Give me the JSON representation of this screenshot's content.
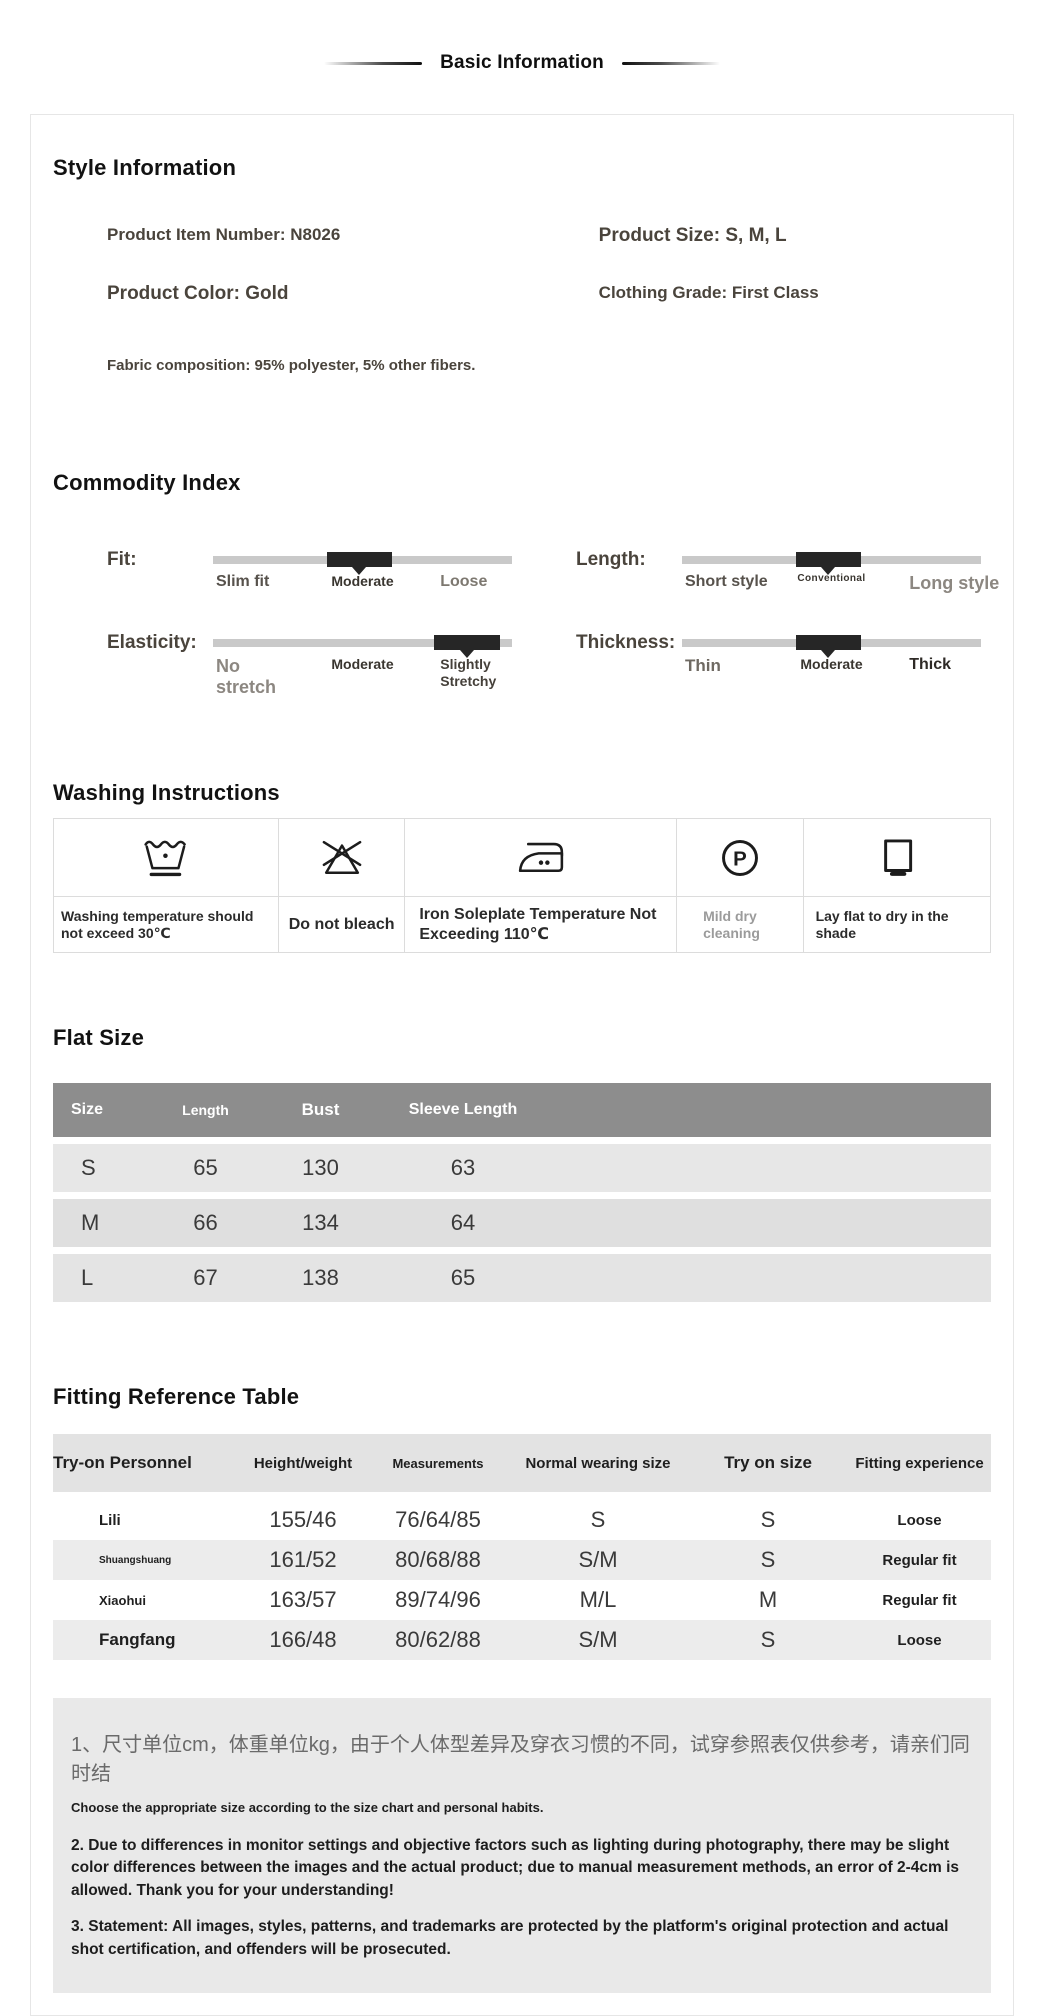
{
  "header": {
    "title": "Basic Information"
  },
  "style_information": {
    "heading": "Style Information",
    "fields": {
      "item_number": "Product Item Number: N8026",
      "size": "Product Size: S, M, L",
      "color": "Product Color: Gold",
      "grade": "Clothing Grade: First Class",
      "fabric": "Fabric composition: 95% polyester, 5% other fibers."
    }
  },
  "commodity_index": {
    "heading": "Commodity Index",
    "sliders": [
      {
        "name": "Fit:",
        "labels": [
          "Slim fit",
          "Moderate",
          "Loose"
        ],
        "active_left_pct": 38,
        "active_width_pct": 22
      },
      {
        "name": "Length:",
        "labels": [
          "Short style",
          "Conventional",
          "Long style"
        ],
        "active_left_pct": 38,
        "active_width_pct": 22
      },
      {
        "name": "Elasticity:",
        "labels": [
          "No stretch",
          "Moderate",
          "Slightly Stretchy"
        ],
        "active_left_pct": 74,
        "active_width_pct": 22
      },
      {
        "name": "Thickness:",
        "labels": [
          "Thin",
          "Moderate",
          "Thick"
        ],
        "active_left_pct": 38,
        "active_width_pct": 22
      }
    ]
  },
  "washing": {
    "heading": "Washing Instructions",
    "items": [
      {
        "icon": "wash-temperature-icon",
        "label": "Washing temperature should not exceed 30℃"
      },
      {
        "icon": "do-not-bleach-icon",
        "label": "Do not bleach"
      },
      {
        "icon": "iron-temperature-icon",
        "label": "Iron Soleplate Temperature Not Exceeding 110℃"
      },
      {
        "icon": "mild-dry-cleaning-icon",
        "label": "Mild dry cleaning",
        "glyph": "P"
      },
      {
        "icon": "dry-flat-shade-icon",
        "label": "Lay flat to dry in the shade"
      }
    ]
  },
  "flat_size": {
    "heading": "Flat Size",
    "columns": [
      "Size",
      "Length",
      "Bust",
      "Sleeve Length"
    ],
    "rows": [
      [
        "S",
        "65",
        "130",
        "63"
      ],
      [
        "M",
        "66",
        "134",
        "64"
      ],
      [
        "L",
        "67",
        "138",
        "65"
      ]
    ]
  },
  "fitting": {
    "heading": "Fitting Reference Table",
    "columns": [
      "Try-on Personnel",
      "Height/weight",
      "Measurements",
      "Normal wearing size",
      "Try on size",
      "Fitting experience"
    ],
    "rows": [
      [
        "Lili",
        "155/46",
        "76/64/85",
        "S",
        "S",
        "Loose"
      ],
      [
        "Shuangshuang",
        "161/52",
        "80/68/88",
        "S/M",
        "S",
        "Regular fit"
      ],
      [
        "Xiaohui",
        "163/57",
        "89/74/96",
        "M/L",
        "M",
        "Regular fit"
      ],
      [
        "Fangfang",
        "166/48",
        "80/62/88",
        "S/M",
        "S",
        "Loose"
      ]
    ]
  },
  "notes": {
    "line1_cn": "1、尺寸单位cm，体重单位kg，由于个人体型差异及穿衣习惯的不同，试穿参照表仅供参考，请亲们同时结",
    "line1_en": "Choose the appropriate size according to the size chart and personal habits.",
    "line2": "2. Due to differences in monitor settings and objective factors such as lighting during photography, there may be slight color differences between the images and the actual product; due to manual measurement methods, an error of 2-4cm is allowed. Thank you for your understanding!",
    "line3": "3. Statement: All images, styles, patterns, and trademarks are protected by the platform's original protection and actual shot certification, and offenders will be prosecuted."
  },
  "colors": {
    "accent_dark": "#262626",
    "track_gray": "#c9c9c9",
    "table_header_gray": "#8d8d8d",
    "row_gray": "#e7e7e7",
    "notes_bg": "#e9e9e9"
  }
}
